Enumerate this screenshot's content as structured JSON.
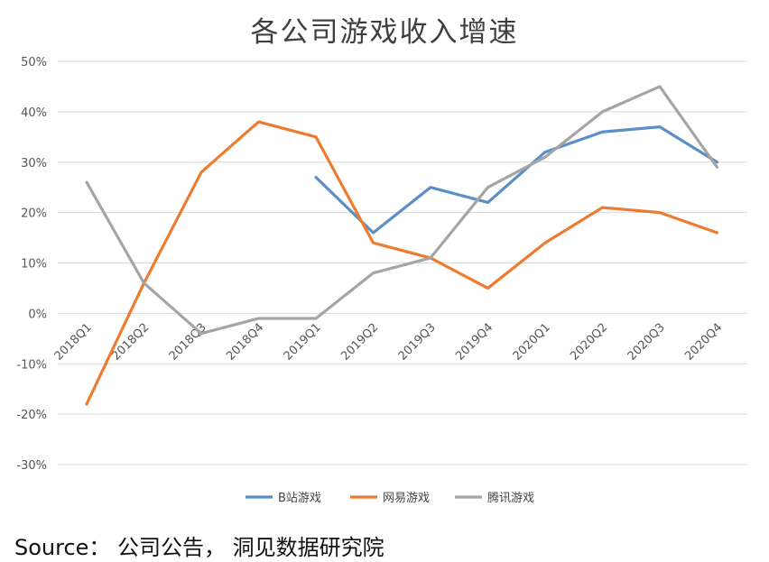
{
  "chart_data": {
    "type": "line",
    "title": "各公司游戏收入增速",
    "categories": [
      "2018Q1",
      "2018Q2",
      "2018Q3",
      "2018Q4",
      "2019Q1",
      "2019Q2",
      "2019Q3",
      "2019Q4",
      "2020Q1",
      "2020Q2",
      "2020Q3",
      "2020Q4"
    ],
    "yticks": [
      "50%",
      "40%",
      "30%",
      "20%",
      "10%",
      "0%",
      "-10%",
      "-20%",
      "-30%"
    ],
    "ylim": [
      -30,
      50
    ],
    "grid": true,
    "legend_position": "bottom",
    "series": [
      {
        "name": "B站游戏",
        "color": "#5b8fc5",
        "values": [
          null,
          null,
          null,
          null,
          27,
          16,
          25,
          22,
          32,
          36,
          37,
          30
        ]
      },
      {
        "name": "网易游戏",
        "color": "#ec7c30",
        "values": [
          -18,
          6,
          28,
          38,
          35,
          14,
          11,
          5,
          14,
          21,
          20,
          16
        ]
      },
      {
        "name": "腾讯游戏",
        "color": "#a5a5a5",
        "values": [
          26,
          6,
          -4,
          -1,
          -1,
          8,
          11,
          25,
          31,
          40,
          45,
          29
        ]
      }
    ]
  },
  "source": "Source： 公司公告， 洞见数据研究院"
}
